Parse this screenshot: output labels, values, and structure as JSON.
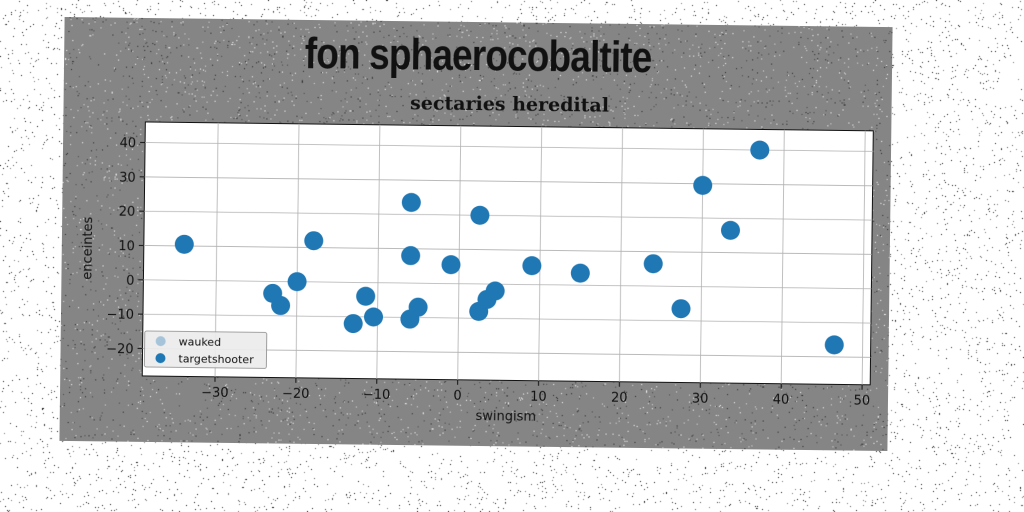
{
  "figure": {
    "suptitle": "fon sphaerocobaltite"
  },
  "chart_data": {
    "type": "scatter",
    "title": "sectaries heredital",
    "xlabel": "swingism",
    "ylabel": "enceintes",
    "xlim": [
      -39,
      51
    ],
    "ylim": [
      -28,
      46
    ],
    "xticks": [
      -30,
      -20,
      -10,
      0,
      10,
      20,
      30,
      40,
      50
    ],
    "yticks": [
      -20,
      -10,
      0,
      10,
      20,
      30,
      40
    ],
    "grid": true,
    "legend_position": "lower-left",
    "series": [
      {
        "name": "wauked",
        "color": "#1f77b4",
        "points": [
          {
            "x": -34,
            "y": 10.5
          },
          {
            "x": -23,
            "y": -3.5
          },
          {
            "x": -22,
            "y": -7
          },
          {
            "x": -20,
            "y": 0
          },
          {
            "x": -18,
            "y": 12
          },
          {
            "x": -13,
            "y": -12
          },
          {
            "x": -11.5,
            "y": -4
          },
          {
            "x": -10.5,
            "y": -10
          },
          {
            "x": -6,
            "y": 23.5
          },
          {
            "x": -6,
            "y": 8
          },
          {
            "x": -6,
            "y": -10.5
          },
          {
            "x": -5,
            "y": -7
          },
          {
            "x": -1,
            "y": 5.5
          },
          {
            "x": 2.5,
            "y": 20
          },
          {
            "x": 2.5,
            "y": -8
          },
          {
            "x": 3.5,
            "y": -4.5
          },
          {
            "x": 4.5,
            "y": -2
          },
          {
            "x": 9,
            "y": 5.5
          },
          {
            "x": 15,
            "y": 3.5
          },
          {
            "x": 24,
            "y": 6.5
          },
          {
            "x": 27.5,
            "y": -6.5
          },
          {
            "x": 30,
            "y": 29.5
          },
          {
            "x": 33.5,
            "y": 16.5
          },
          {
            "x": 37,
            "y": 40
          },
          {
            "x": 46.5,
            "y": -16.5
          }
        ]
      },
      {
        "name": "targetshooter",
        "color": "#1f77b4",
        "points": []
      }
    ]
  }
}
